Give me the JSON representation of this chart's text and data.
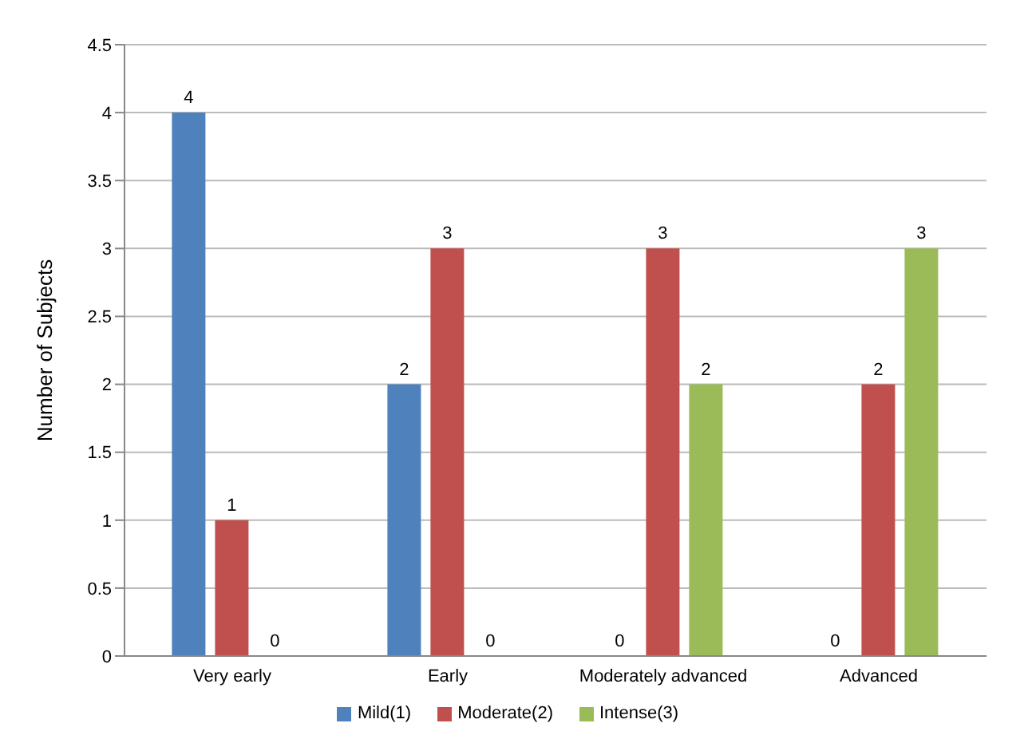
{
  "chart_data": {
    "type": "bar",
    "ylabel": "Number of Subjects",
    "categories": [
      "Very early",
      "Early",
      "Moderately advanced",
      "Advanced"
    ],
    "series": [
      {
        "name": "Mild(1)",
        "color": "#4f81bd",
        "values": [
          4,
          2,
          0,
          0
        ]
      },
      {
        "name": "Moderate(2)",
        "color": "#c0504d",
        "values": [
          1,
          3,
          3,
          2
        ]
      },
      {
        "name": "Intense(3)",
        "color": "#9bbb59",
        "values": [
          0,
          0,
          2,
          3
        ]
      }
    ],
    "ylim": [
      0,
      4.5
    ],
    "yticks": [
      0,
      0.5,
      1,
      1.5,
      2,
      2.5,
      3,
      3.5,
      4,
      4.5
    ],
    "grid": "y",
    "legend": "bottom",
    "data_labels": true
  }
}
